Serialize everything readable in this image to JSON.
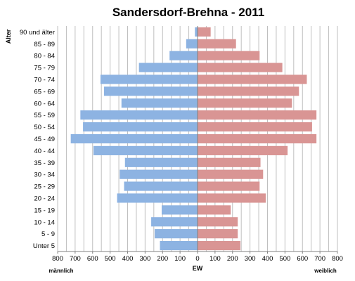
{
  "chart_data": {
    "type": "bar",
    "orientation": "horizontal-population-pyramid",
    "title": "Sandersdorf-Brehna - 2011",
    "ylabel": "Alter",
    "xlabel": "EW",
    "left_label": "männlich",
    "right_label": "weiblich",
    "x_ticks": [
      "800",
      "700",
      "600",
      "500",
      "400",
      "300",
      "200",
      "100",
      "0",
      "100",
      "200",
      "300",
      "400",
      "500",
      "600",
      "700",
      "800"
    ],
    "xlim": [
      -800,
      800
    ],
    "grid": true,
    "categories": [
      "90 und älter",
      "85 - 89",
      "80 - 84",
      "75 - 79",
      "70 - 74",
      "65 - 69",
      "60 - 64",
      "55 - 59",
      "50 - 54",
      "45 - 49",
      "40 - 44",
      "35 - 39",
      "30 - 34",
      "25 - 29",
      "20 - 24",
      "15 - 19",
      "10 - 14",
      "5 - 9",
      "Unter 5"
    ],
    "series": [
      {
        "side": "left",
        "color": "#8db3e2",
        "values": [
          15,
          65,
          160,
          335,
          555,
          535,
          435,
          670,
          655,
          725,
          595,
          415,
          445,
          420,
          460,
          205,
          265,
          245,
          215
        ]
      },
      {
        "side": "right",
        "color": "#d99594",
        "values": [
          75,
          220,
          355,
          485,
          625,
          580,
          540,
          680,
          655,
          680,
          515,
          360,
          375,
          355,
          390,
          190,
          230,
          230,
          245
        ]
      }
    ]
  }
}
